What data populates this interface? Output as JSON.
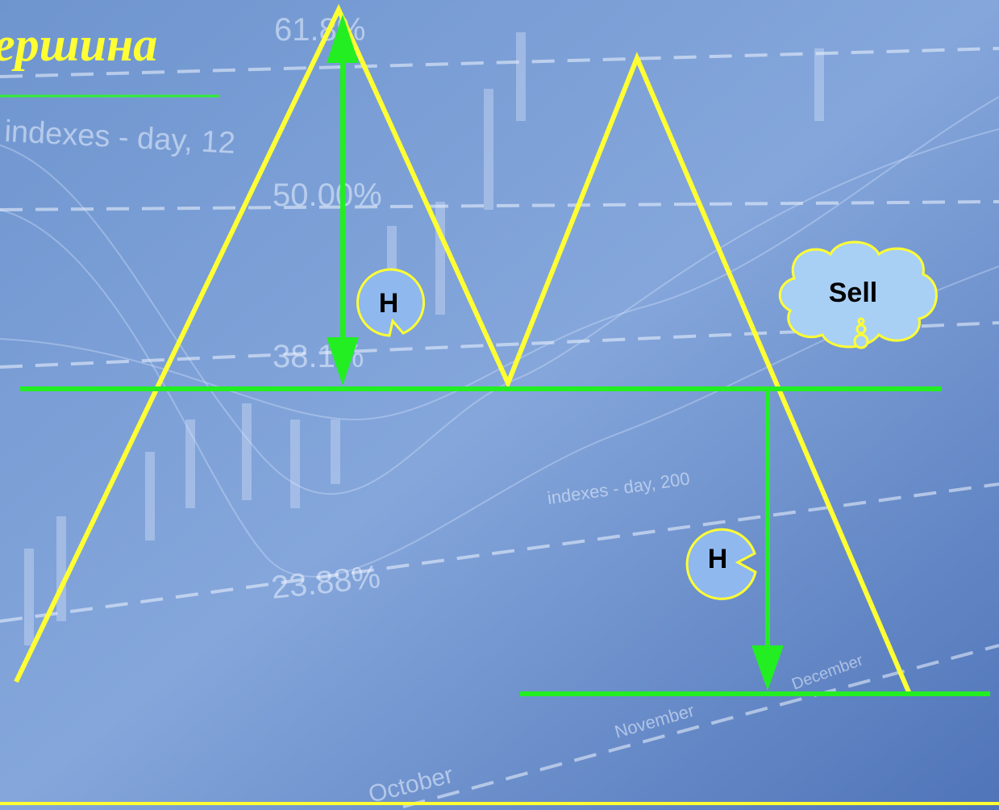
{
  "title": "ершина",
  "labels": {
    "height_top": "H",
    "height_bottom": "H",
    "signal": "Sell"
  },
  "background": {
    "levels": [
      "61.8%",
      "50.00%",
      "38.1%",
      "23.88%"
    ],
    "captions": [
      "indexes - day, 12",
      "indexes - day, 200",
      "October",
      "November",
      "December"
    ]
  }
}
